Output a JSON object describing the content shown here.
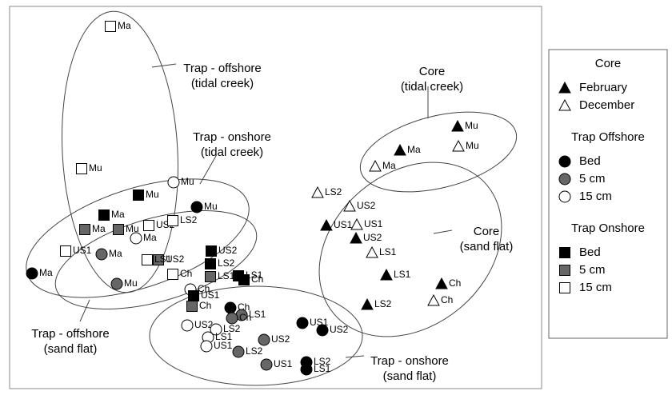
{
  "chart_data": {
    "type": "scatter",
    "xlim": [
      0,
      665
    ],
    "ylim": [
      0,
      478
    ],
    "annotations": [
      {
        "lines": [
          "Trap - offshore",
          "(tidal creek)"
        ]
      },
      {
        "lines": [
          "Trap - onshore",
          "(tidal creek)"
        ]
      },
      {
        "lines": [
          "Trap - offshore",
          "(sand flat)"
        ]
      },
      {
        "lines": [
          "Trap - onshore",
          "(sand flat)"
        ]
      },
      {
        "lines": [
          "Core",
          "(tidal creek)"
        ]
      },
      {
        "lines": [
          "Core",
          "(sand flat)"
        ]
      }
    ],
    "groups": [
      {
        "title": "Core",
        "series": [
          {
            "name": "February",
            "marker": "triangle",
            "color": "#000000",
            "x": [
              560,
              488,
              396,
              433,
              471,
              540,
              447
            ],
            "y": [
              328,
              298,
              204,
              188,
              142,
              131,
              105
            ],
            "labels": [
              "Mu",
              "Ma",
              "US1",
              "US2",
              "LS1",
              "Ch",
              "LS2"
            ]
          },
          {
            "name": "December",
            "marker": "triangle",
            "color": "#ffffff",
            "x": [
              561,
              457,
              385,
              425,
              434,
              453,
              530
            ],
            "y": [
              303,
              278,
              245,
              228,
              205,
              170,
              110
            ],
            "labels": [
              "Mu",
              "Ma",
              "LS2",
              "US2",
              "US1",
              "LS1",
              "Ch"
            ]
          }
        ]
      },
      {
        "title": "Trap Offshore",
        "series": [
          {
            "name": "Bed",
            "marker": "circle",
            "color": "#000000",
            "x": [
              234,
              28,
              276,
              366,
              391,
              371,
              371
            ],
            "y": [
              227,
              144,
              101,
              82,
              73,
              33,
              24
            ],
            "labels": [
              "Mu",
              "Ma",
              "Ch",
              "US1",
              "US2",
              "LS2",
              "LS1"
            ]
          },
          {
            "name": "5 cm",
            "marker": "circle",
            "color": "#666666",
            "x": [
              115,
              134,
              290,
              278,
              318,
              286,
              321
            ],
            "y": [
              168,
              131,
              92,
              88,
              61,
              46,
              30
            ],
            "labels": [
              "Ma",
              "Mu",
              "LS1",
              "Ch",
              "US2",
              "LS2",
              "US1"
            ]
          },
          {
            "name": "15 cm",
            "marker": "circle",
            "color": "#ffffff",
            "x": [
              205,
              158,
              226,
              222,
              258,
              248,
              246
            ],
            "y": [
              258,
              188,
              124,
              79,
              74,
              64,
              53
            ],
            "labels": [
              "Mu",
              "Ma",
              "Ch",
              "US2",
              "LS2",
              "LS1",
              "US1"
            ]
          }
        ]
      },
      {
        "title": "Trap Onshore",
        "series": [
          {
            "name": "Bed",
            "marker": "square",
            "color": "#000000",
            "x": [
              161,
              118,
              252,
              251,
              286,
              293,
              230
            ],
            "y": [
              242,
              217,
              172,
              156,
              141,
              136,
              116
            ],
            "labels": [
              "Mu",
              "Ma",
              "US2",
              "LS2",
              "LS1",
              "Ch",
              "US1"
            ]
          },
          {
            "name": "5 cm",
            "marker": "square",
            "color": "#666666",
            "x": [
              94,
              136,
              186,
              251,
              228
            ],
            "y": [
              199,
              199,
              161,
              140,
              103
            ],
            "labels": [
              "Ma",
              "Mu",
              "US2",
              "LS1",
              "Ch"
            ]
          },
          {
            "name": "15 cm",
            "marker": "square",
            "color": "#ffffff",
            "x": [
              126,
              90,
              174,
              204,
              70,
              172,
              204
            ],
            "y": [
              453,
              275,
              204,
              210,
              172,
              161,
              143
            ],
            "labels": [
              "Ma",
              "Mu",
              "US2",
              "LS2",
              "US1",
              "LS1",
              "Ch"
            ]
          }
        ]
      }
    ]
  }
}
